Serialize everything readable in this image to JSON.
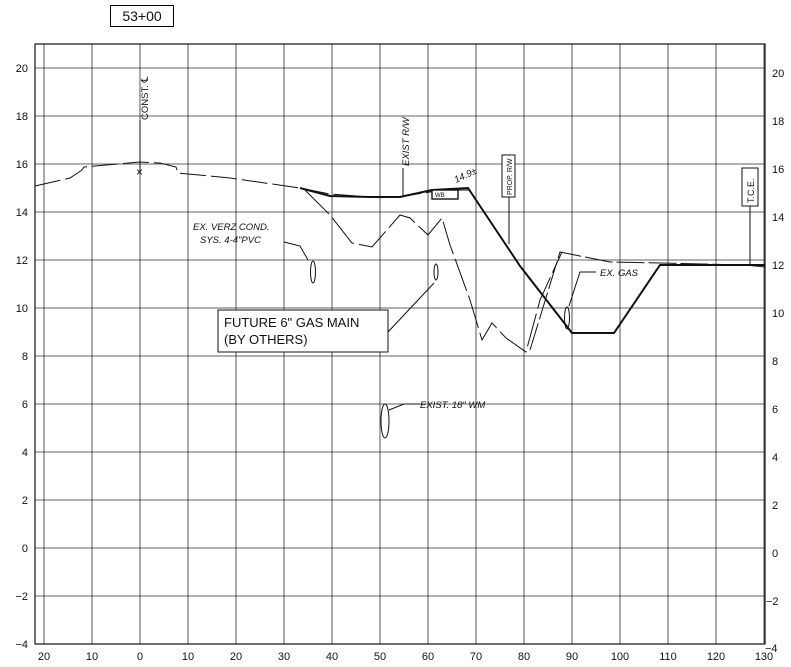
{
  "station": "53+00",
  "y_ticks": [
    "20",
    "18",
    "16",
    "14",
    "12",
    "10",
    "8",
    "6",
    "4",
    "2",
    "0",
    "−2",
    "−4"
  ],
  "x_ticks": [
    "20",
    "10",
    "0",
    "10",
    "20",
    "30",
    "40",
    "50",
    "60",
    "70",
    "80",
    "90",
    "100",
    "110",
    "120",
    "130"
  ],
  "labels": {
    "const": "CONST. ℄",
    "exist_rw": "EXIST R/W",
    "prop_rw": "PROP. R/W",
    "tce": "T.C.E.",
    "elev_note": "14.9±",
    "wb": "WB",
    "verz_line1": "EX. VERZ COND.",
    "verz_line2": "SYS. 4-4\"PVC",
    "ex_gas": "EX. GAS",
    "future_line1": "FUTURE 6\" GAS MAIN",
    "future_line2": "(BY OTHERS)",
    "wm": "EXIST. 18\" WM"
  }
}
